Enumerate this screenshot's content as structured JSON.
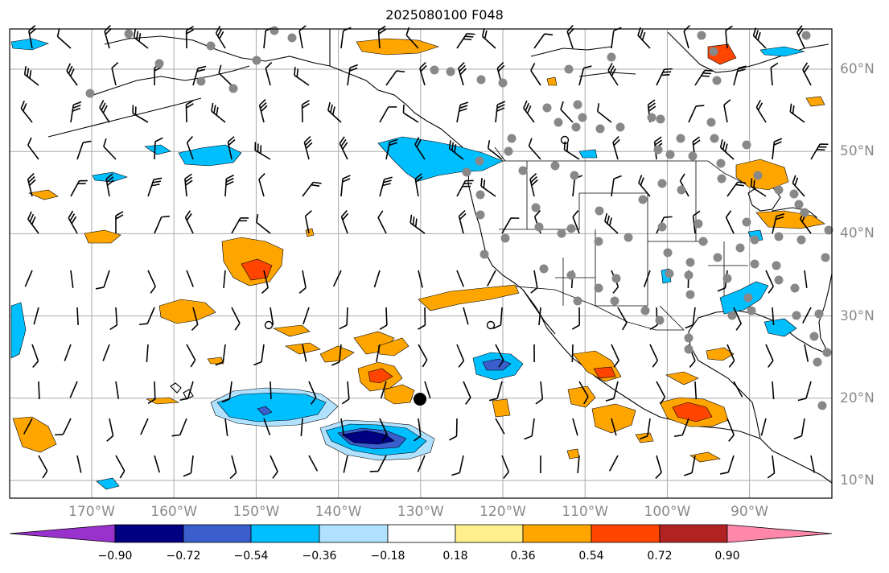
{
  "title": "2025080100 F048",
  "map": {
    "lon_range": [
      -180,
      -80
    ],
    "lat_range": [
      8,
      65
    ],
    "lon_labels": [
      "170°W",
      "160°W",
      "150°W",
      "140°W",
      "130°W",
      "120°W",
      "110°W",
      "100°W",
      "90°W"
    ],
    "lat_labels": [
      "60°N",
      "50°N",
      "40°N",
      "30°N",
      "20°N",
      "10°N"
    ],
    "gridlines": true
  },
  "colorbar": {
    "colors": [
      "#9932cc",
      "#000080",
      "#3a5fcd",
      "#00bfff",
      "#b0e2ff",
      "#ffffff",
      "#fff08c",
      "#ffa500",
      "#ff4500",
      "#b22222",
      "#ff88aa"
    ],
    "ticks": [
      "−0.90",
      "−0.72",
      "−0.54",
      "−0.36",
      "−0.18",
      "0.18",
      "0.36",
      "0.54",
      "0.72",
      "0.90"
    ],
    "extend": "both"
  },
  "colors": {
    "neg_light": "#b0e2ff",
    "neg_mid": "#00bfff",
    "neg_strong": "#3a5fcd",
    "neg_max": "#000080",
    "pos_light": "#fff08c",
    "pos_mid": "#ffa500",
    "pos_strong": "#ff4500",
    "station_dot": "#888888",
    "grid": "#aaaaaa",
    "label_gray": "#8a8a8a"
  }
}
